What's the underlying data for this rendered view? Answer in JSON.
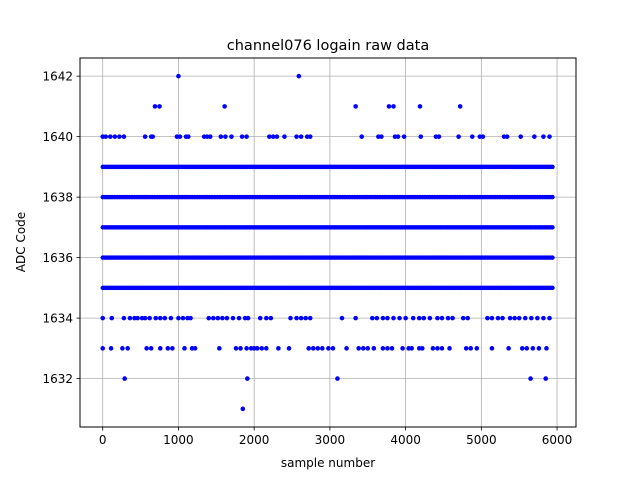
{
  "chart_data": {
    "type": "scatter",
    "title": "channel076 logain raw data",
    "xlabel": "sample number",
    "ylabel": "ADC Code",
    "xlim": [
      -300,
      6250
    ],
    "ylim": [
      1630.4,
      1642.6
    ],
    "xticks": [
      0,
      1000,
      2000,
      3000,
      4000,
      5000,
      6000
    ],
    "yticks": [
      1632,
      1634,
      1636,
      1638,
      1640,
      1642
    ],
    "grid": true,
    "marker_color": "#0000ff",
    "x_max": 5950,
    "series": [
      {
        "points_note": "",
        "dense_levels": [
          1635,
          1636,
          1637,
          1638,
          1639
        ],
        "sparse_points": [
          {
            "x": 0,
            "y": 1640
          },
          {
            "x": 40,
            "y": 1640
          },
          {
            "x": 100,
            "y": 1640
          },
          {
            "x": 160,
            "y": 1640
          },
          {
            "x": 220,
            "y": 1640
          },
          {
            "x": 280,
            "y": 1640
          },
          {
            "x": 560,
            "y": 1640
          },
          {
            "x": 640,
            "y": 1640
          },
          {
            "x": 660,
            "y": 1640
          },
          {
            "x": 980,
            "y": 1640
          },
          {
            "x": 1020,
            "y": 1640
          },
          {
            "x": 1100,
            "y": 1640
          },
          {
            "x": 1130,
            "y": 1640
          },
          {
            "x": 1340,
            "y": 1640
          },
          {
            "x": 1380,
            "y": 1640
          },
          {
            "x": 1420,
            "y": 1640
          },
          {
            "x": 1560,
            "y": 1640
          },
          {
            "x": 1620,
            "y": 1640
          },
          {
            "x": 1700,
            "y": 1640
          },
          {
            "x": 1840,
            "y": 1640
          },
          {
            "x": 1900,
            "y": 1640
          },
          {
            "x": 2200,
            "y": 1640
          },
          {
            "x": 2250,
            "y": 1640
          },
          {
            "x": 2300,
            "y": 1640
          },
          {
            "x": 2400,
            "y": 1640
          },
          {
            "x": 2560,
            "y": 1640
          },
          {
            "x": 2620,
            "y": 1640
          },
          {
            "x": 2700,
            "y": 1640
          },
          {
            "x": 2740,
            "y": 1640
          },
          {
            "x": 3420,
            "y": 1640
          },
          {
            "x": 3640,
            "y": 1640
          },
          {
            "x": 3680,
            "y": 1640
          },
          {
            "x": 3860,
            "y": 1640
          },
          {
            "x": 3900,
            "y": 1640
          },
          {
            "x": 3980,
            "y": 1640
          },
          {
            "x": 4200,
            "y": 1640
          },
          {
            "x": 4400,
            "y": 1640
          },
          {
            "x": 4440,
            "y": 1640
          },
          {
            "x": 4700,
            "y": 1640
          },
          {
            "x": 4880,
            "y": 1640
          },
          {
            "x": 4980,
            "y": 1640
          },
          {
            "x": 5020,
            "y": 1640
          },
          {
            "x": 5300,
            "y": 1640
          },
          {
            "x": 5340,
            "y": 1640
          },
          {
            "x": 5520,
            "y": 1640
          },
          {
            "x": 5700,
            "y": 1640
          },
          {
            "x": 5820,
            "y": 1640
          },
          {
            "x": 5900,
            "y": 1640
          },
          {
            "x": 690,
            "y": 1641
          },
          {
            "x": 750,
            "y": 1641
          },
          {
            "x": 1610,
            "y": 1641
          },
          {
            "x": 3340,
            "y": 1641
          },
          {
            "x": 3780,
            "y": 1641
          },
          {
            "x": 3840,
            "y": 1641
          },
          {
            "x": 4190,
            "y": 1641
          },
          {
            "x": 4720,
            "y": 1641
          },
          {
            "x": 1000,
            "y": 1642
          },
          {
            "x": 2590,
            "y": 1642
          },
          {
            "x": 0,
            "y": 1634
          },
          {
            "x": 120,
            "y": 1634
          },
          {
            "x": 280,
            "y": 1634
          },
          {
            "x": 360,
            "y": 1634
          },
          {
            "x": 420,
            "y": 1634
          },
          {
            "x": 460,
            "y": 1634
          },
          {
            "x": 520,
            "y": 1634
          },
          {
            "x": 560,
            "y": 1634
          },
          {
            "x": 620,
            "y": 1634
          },
          {
            "x": 700,
            "y": 1634
          },
          {
            "x": 760,
            "y": 1634
          },
          {
            "x": 820,
            "y": 1634
          },
          {
            "x": 900,
            "y": 1634
          },
          {
            "x": 1000,
            "y": 1634
          },
          {
            "x": 1060,
            "y": 1634
          },
          {
            "x": 1120,
            "y": 1634
          },
          {
            "x": 1160,
            "y": 1634
          },
          {
            "x": 1400,
            "y": 1634
          },
          {
            "x": 1460,
            "y": 1634
          },
          {
            "x": 1520,
            "y": 1634
          },
          {
            "x": 1580,
            "y": 1634
          },
          {
            "x": 1640,
            "y": 1634
          },
          {
            "x": 1720,
            "y": 1634
          },
          {
            "x": 1800,
            "y": 1634
          },
          {
            "x": 1880,
            "y": 1634
          },
          {
            "x": 1920,
            "y": 1634
          },
          {
            "x": 2080,
            "y": 1634
          },
          {
            "x": 2160,
            "y": 1634
          },
          {
            "x": 2220,
            "y": 1634
          },
          {
            "x": 2480,
            "y": 1634
          },
          {
            "x": 2560,
            "y": 1634
          },
          {
            "x": 2620,
            "y": 1634
          },
          {
            "x": 2680,
            "y": 1634
          },
          {
            "x": 2740,
            "y": 1634
          },
          {
            "x": 3160,
            "y": 1634
          },
          {
            "x": 3340,
            "y": 1634
          },
          {
            "x": 3560,
            "y": 1634
          },
          {
            "x": 3620,
            "y": 1634
          },
          {
            "x": 3700,
            "y": 1634
          },
          {
            "x": 3760,
            "y": 1634
          },
          {
            "x": 3840,
            "y": 1634
          },
          {
            "x": 3920,
            "y": 1634
          },
          {
            "x": 4000,
            "y": 1634
          },
          {
            "x": 4100,
            "y": 1634
          },
          {
            "x": 4180,
            "y": 1634
          },
          {
            "x": 4240,
            "y": 1634
          },
          {
            "x": 4320,
            "y": 1634
          },
          {
            "x": 4420,
            "y": 1634
          },
          {
            "x": 4480,
            "y": 1634
          },
          {
            "x": 4560,
            "y": 1634
          },
          {
            "x": 4620,
            "y": 1634
          },
          {
            "x": 4760,
            "y": 1634
          },
          {
            "x": 4820,
            "y": 1634
          },
          {
            "x": 5080,
            "y": 1634
          },
          {
            "x": 5140,
            "y": 1634
          },
          {
            "x": 5220,
            "y": 1634
          },
          {
            "x": 5280,
            "y": 1634
          },
          {
            "x": 5380,
            "y": 1634
          },
          {
            "x": 5440,
            "y": 1634
          },
          {
            "x": 5500,
            "y": 1634
          },
          {
            "x": 5580,
            "y": 1634
          },
          {
            "x": 5660,
            "y": 1634
          },
          {
            "x": 5740,
            "y": 1634
          },
          {
            "x": 5820,
            "y": 1634
          },
          {
            "x": 5900,
            "y": 1634
          },
          {
            "x": 0,
            "y": 1633
          },
          {
            "x": 110,
            "y": 1633
          },
          {
            "x": 260,
            "y": 1633
          },
          {
            "x": 330,
            "y": 1633
          },
          {
            "x": 580,
            "y": 1633
          },
          {
            "x": 640,
            "y": 1633
          },
          {
            "x": 760,
            "y": 1633
          },
          {
            "x": 860,
            "y": 1633
          },
          {
            "x": 920,
            "y": 1633
          },
          {
            "x": 1080,
            "y": 1633
          },
          {
            "x": 1180,
            "y": 1633
          },
          {
            "x": 1220,
            "y": 1633
          },
          {
            "x": 1540,
            "y": 1633
          },
          {
            "x": 1760,
            "y": 1633
          },
          {
            "x": 1820,
            "y": 1633
          },
          {
            "x": 1900,
            "y": 1633
          },
          {
            "x": 1960,
            "y": 1633
          },
          {
            "x": 2000,
            "y": 1633
          },
          {
            "x": 2040,
            "y": 1633
          },
          {
            "x": 2100,
            "y": 1633
          },
          {
            "x": 2160,
            "y": 1633
          },
          {
            "x": 2320,
            "y": 1633
          },
          {
            "x": 2460,
            "y": 1633
          },
          {
            "x": 2720,
            "y": 1633
          },
          {
            "x": 2780,
            "y": 1633
          },
          {
            "x": 2840,
            "y": 1633
          },
          {
            "x": 2900,
            "y": 1633
          },
          {
            "x": 2980,
            "y": 1633
          },
          {
            "x": 3040,
            "y": 1633
          },
          {
            "x": 3220,
            "y": 1633
          },
          {
            "x": 3380,
            "y": 1633
          },
          {
            "x": 3440,
            "y": 1633
          },
          {
            "x": 3500,
            "y": 1633
          },
          {
            "x": 3580,
            "y": 1633
          },
          {
            "x": 3700,
            "y": 1633
          },
          {
            "x": 3760,
            "y": 1633
          },
          {
            "x": 3820,
            "y": 1633
          },
          {
            "x": 3960,
            "y": 1633
          },
          {
            "x": 4040,
            "y": 1633
          },
          {
            "x": 4080,
            "y": 1633
          },
          {
            "x": 4180,
            "y": 1633
          },
          {
            "x": 4220,
            "y": 1633
          },
          {
            "x": 4360,
            "y": 1633
          },
          {
            "x": 4420,
            "y": 1633
          },
          {
            "x": 4480,
            "y": 1633
          },
          {
            "x": 4580,
            "y": 1633
          },
          {
            "x": 4800,
            "y": 1633
          },
          {
            "x": 4860,
            "y": 1633
          },
          {
            "x": 4940,
            "y": 1633
          },
          {
            "x": 5140,
            "y": 1633
          },
          {
            "x": 5360,
            "y": 1633
          },
          {
            "x": 5540,
            "y": 1633
          },
          {
            "x": 5600,
            "y": 1633
          },
          {
            "x": 5680,
            "y": 1633
          },
          {
            "x": 5760,
            "y": 1633
          },
          {
            "x": 5860,
            "y": 1633
          },
          {
            "x": 290,
            "y": 1632
          },
          {
            "x": 1910,
            "y": 1632
          },
          {
            "x": 3100,
            "y": 1632
          },
          {
            "x": 5650,
            "y": 1632
          },
          {
            "x": 5850,
            "y": 1632
          },
          {
            "x": 1850,
            "y": 1631
          }
        ]
      }
    ]
  }
}
